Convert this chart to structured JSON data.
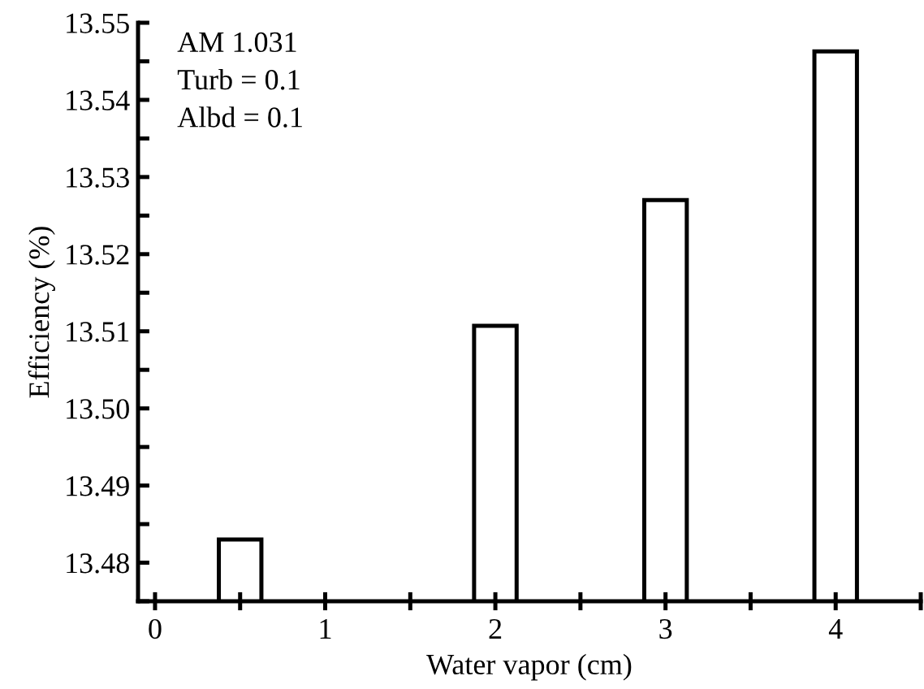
{
  "chart_data": {
    "type": "bar",
    "xlabel": "Water vapor (cm)",
    "ylabel": "Efficiency (%)",
    "annotations": [
      "AM 1.031",
      "Turb = 0.1",
      "Albd = 0.1"
    ],
    "x": [
      0.5,
      2,
      3,
      4
    ],
    "values": [
      13.483,
      13.5107,
      13.527,
      13.5463
    ],
    "color": "#ffffff",
    "xlim": [
      -0.1,
      4.5
    ],
    "xticks": [
      0,
      {
        "value": 0.5,
        "label": null
      },
      1,
      {
        "value": 1.5,
        "label": null
      },
      2,
      {
        "value": 2.5,
        "label": null
      },
      3,
      {
        "value": 3.5,
        "label": null
      },
      4,
      {
        "value": 4.5,
        "label": null
      }
    ],
    "ylim": [
      13.475,
      13.55
    ],
    "yticks": [
      {
        "value": 13.475,
        "label": null
      },
      13.48,
      {
        "value": 13.485,
        "label": null
      },
      13.49,
      {
        "value": 13.495,
        "label": null
      },
      {
        "value": 13.5,
        "label": "13.50"
      },
      {
        "value": 13.505,
        "label": null
      },
      13.51,
      {
        "value": 13.515,
        "label": null
      },
      13.52,
      {
        "value": 13.525,
        "label": null
      },
      13.53,
      {
        "value": 13.535,
        "label": null
      },
      13.54,
      {
        "value": 13.545,
        "label": null
      },
      13.55
    ],
    "grid": false
  }
}
